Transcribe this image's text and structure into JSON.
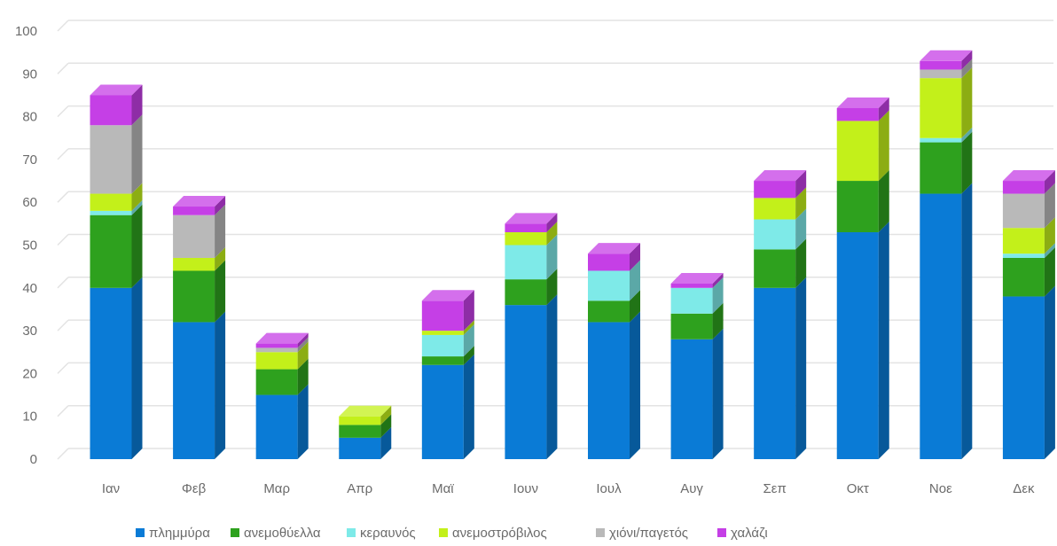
{
  "chart_data": {
    "type": "bar",
    "stacked": true,
    "three_d": true,
    "title": "",
    "xlabel": "",
    "ylabel": "",
    "ylim": [
      0,
      100
    ],
    "yticks": [
      0,
      10,
      20,
      30,
      40,
      50,
      60,
      70,
      80,
      90,
      100
    ],
    "grid": true,
    "legend_position": "bottom",
    "categories": [
      "Ιαν",
      "Φεβ",
      "Μαρ",
      "Απρ",
      "Μαϊ",
      "Ιουν",
      "Ιουλ",
      "Αυγ",
      "Σεπ",
      "Οκτ",
      "Νοε",
      "Δεκ"
    ],
    "series": [
      {
        "name": "πλημμύρα",
        "color": "#0a7bd6",
        "values": [
          40,
          32,
          15,
          5,
          22,
          36,
          32,
          28,
          40,
          53,
          62,
          38
        ]
      },
      {
        "name": "ανεμοθύελλα",
        "color": "#2ea11e",
        "values": [
          17,
          12,
          6,
          3,
          2,
          6,
          5,
          6,
          9,
          12,
          12,
          9
        ]
      },
      {
        "name": "κεραυνός",
        "color": "#7eeae8",
        "values": [
          1,
          0,
          0,
          0,
          5,
          8,
          7,
          6,
          7,
          0,
          1,
          1
        ]
      },
      {
        "name": "ανεμοστρόβιλος",
        "color": "#c3f01a",
        "values": [
          4,
          3,
          4,
          2,
          1,
          3,
          0,
          0,
          5,
          14,
          14,
          6
        ]
      },
      {
        "name": "χιόνι/παγετός",
        "color": "#b9b9b9",
        "values": [
          16,
          10,
          1,
          0,
          0,
          0,
          0,
          0,
          0,
          0,
          2,
          8
        ]
      },
      {
        "name": "χαλάζι",
        "color": "#c53fe6",
        "values": [
          7,
          2,
          1,
          0,
          7,
          2,
          4,
          1,
          4,
          3,
          2,
          3
        ]
      }
    ]
  }
}
